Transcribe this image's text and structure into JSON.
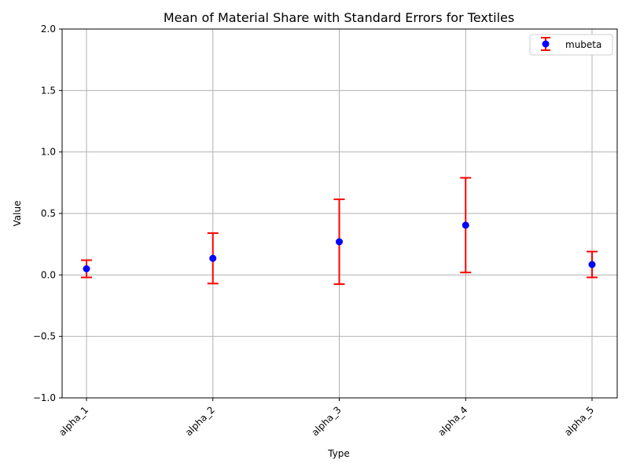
{
  "chart_data": {
    "type": "scatter",
    "title": "Mean of Material Share with Standard Errors for Textiles",
    "xlabel": "Type",
    "ylabel": "Value",
    "categories": [
      "alpha_1",
      "alpha_2",
      "alpha_3",
      "alpha_4",
      "alpha_5"
    ],
    "ylim": [
      -1.0,
      2.0
    ],
    "yticks": [
      "−1.0",
      "−0.5",
      "0.0",
      "0.5",
      "1.0",
      "1.5",
      "2.0"
    ],
    "ytick_values": [
      -1.0,
      -0.5,
      0.0,
      0.5,
      1.0,
      1.5,
      2.0
    ],
    "grid": true,
    "legend_position": "top-right",
    "series": [
      {
        "name": "mubeta",
        "values": [
          0.05,
          0.135,
          0.27,
          0.405,
          0.085
        ],
        "error_lower": [
          -0.02,
          -0.07,
          -0.075,
          0.02,
          -0.02
        ],
        "error_upper": [
          0.12,
          0.34,
          0.615,
          0.79,
          0.19
        ],
        "marker_color": "#0000ff",
        "error_color": "#ff0000"
      }
    ]
  }
}
